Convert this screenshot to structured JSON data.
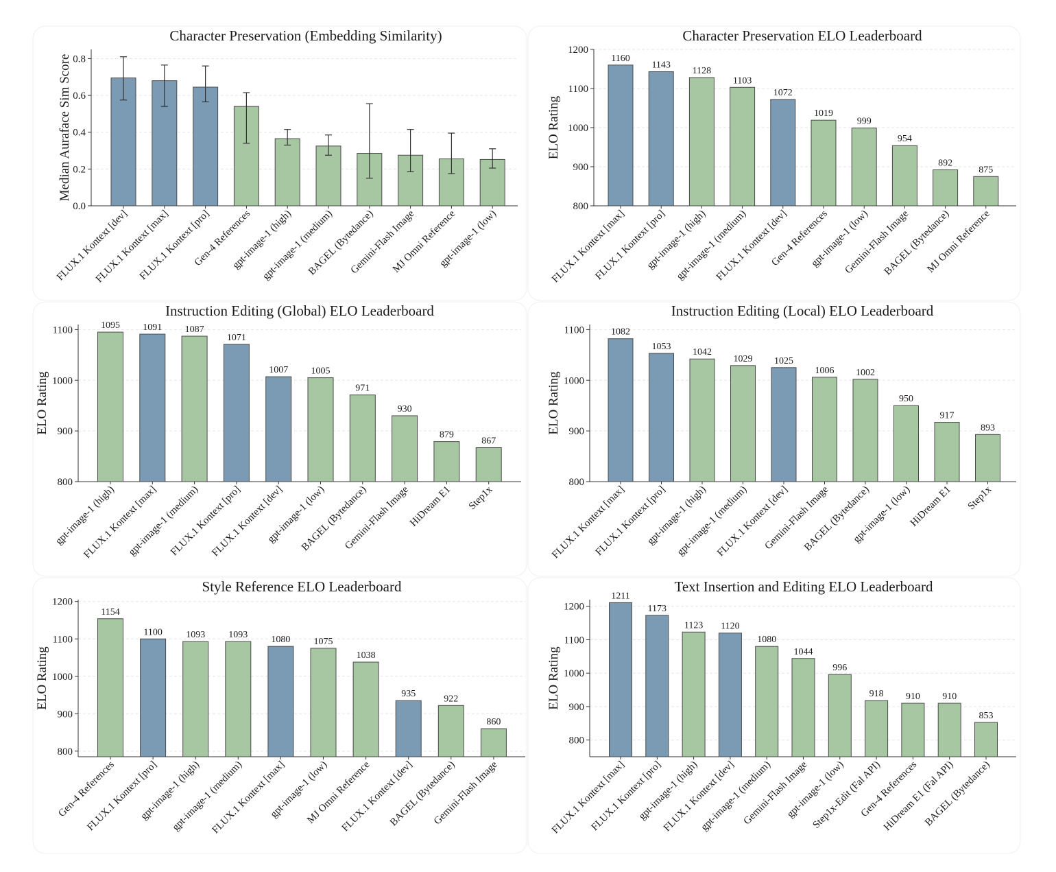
{
  "colors": {
    "flux": "#7b9bb5",
    "other": "#a7c7a2"
  },
  "chart_data": [
    {
      "type": "bar",
      "title": "Character Preservation (Embedding Similarity)",
      "ylabel": "Median Auraface Sim Score",
      "ylim": [
        0,
        0.85
      ],
      "yticks": [
        "0.0",
        "0.2",
        "0.4",
        "0.6",
        "0.8"
      ],
      "ytick_values": [
        0,
        0.2,
        0.4,
        0.6,
        0.8
      ],
      "categories": [
        "FLUX.1 Kontext [dev]",
        "FLUX.1 Kontext [max]",
        "FLUX.1 Kontext [pro]",
        "Gen-4 References",
        "gpt-image-1 (high)",
        "gpt-image-1 (medium)",
        "BAGEL (Bytedance)",
        "Gemini-Flash Image",
        "MJ Omni Reference",
        "gpt-image-1 (low)"
      ],
      "values": [
        0.695,
        0.68,
        0.645,
        0.54,
        0.365,
        0.325,
        0.285,
        0.275,
        0.255,
        0.252
      ],
      "err_low": [
        0.575,
        0.54,
        0.565,
        0.34,
        0.33,
        0.275,
        0.15,
        0.185,
        0.175,
        0.205
      ],
      "err_high": [
        0.81,
        0.765,
        0.76,
        0.615,
        0.415,
        0.385,
        0.555,
        0.415,
        0.395,
        0.31
      ],
      "highlight": [
        true,
        true,
        true,
        false,
        false,
        false,
        false,
        false,
        false,
        false
      ],
      "show_labels": false
    },
    {
      "type": "bar",
      "title": "Character Preservation ELO Leaderboard",
      "ylabel": "ELO Rating",
      "ylim": [
        800,
        1200
      ],
      "yticks": [
        "800",
        "900",
        "1000",
        "1100",
        "1200"
      ],
      "ytick_values": [
        800,
        900,
        1000,
        1100,
        1200
      ],
      "categories": [
        "FLUX.1 Kontext [max]",
        "FLUX.1 Kontext [pro]",
        "gpt-image-1 (high)",
        "gpt-image-1 (medium)",
        "FLUX.1 Kontext [dev]",
        "Gen-4 References",
        "gpt-image-1 (low)",
        "Gemini-Flash Image",
        "BAGEL (Bytedance)",
        "MJ Omni Reference"
      ],
      "values": [
        1160,
        1143,
        1128,
        1103,
        1072,
        1019,
        999,
        954,
        892,
        875
      ],
      "value_labels": [
        "1160",
        "1143",
        "1128",
        "1103",
        "1072",
        "1019",
        "999",
        "954",
        "892",
        "875"
      ],
      "highlight": [
        true,
        true,
        false,
        false,
        true,
        false,
        false,
        false,
        false,
        false
      ],
      "show_labels": true
    },
    {
      "type": "bar",
      "title": "Instruction Editing (Global) ELO Leaderboard",
      "ylabel": "ELO Rating",
      "ylim": [
        800,
        1110
      ],
      "yticks": [
        "800",
        "900",
        "1000",
        "1100"
      ],
      "ytick_values": [
        800,
        900,
        1000,
        1100
      ],
      "categories": [
        "gpt-image-1 (high)",
        "FLUX.1 Kontext [max]",
        "gpt-image-1 (medium)",
        "FLUX.1 Kontext [pro]",
        "FLUX.1 Kontext [dev]",
        "gpt-image-1 (low)",
        "BAGEL (Bytedance)",
        "Gemini-Flash Image",
        "HiDream E1",
        "Step1x"
      ],
      "values": [
        1095,
        1091,
        1087,
        1071,
        1007,
        1005,
        971,
        930,
        879,
        867
      ],
      "value_labels": [
        "1095",
        "1091",
        "1087",
        "1071",
        "1007",
        "1005",
        "971",
        "930",
        "879",
        "867"
      ],
      "highlight": [
        false,
        true,
        false,
        true,
        true,
        false,
        false,
        false,
        false,
        false
      ],
      "show_labels": true
    },
    {
      "type": "bar",
      "title": "Instruction Editing (Local) ELO Leaderboard",
      "ylabel": "ELO Rating",
      "ylim": [
        800,
        1110
      ],
      "yticks": [
        "800",
        "900",
        "1000",
        "1100"
      ],
      "ytick_values": [
        800,
        900,
        1000,
        1100
      ],
      "categories": [
        "FLUX.1 Kontext [max]",
        "FLUX.1 Kontext [pro]",
        "gpt-image-1 (high)",
        "gpt-image-1 (medium)",
        "FLUX.1 Kontext [dev]",
        "Gemini-Flash Image",
        "BAGEL (Bytedance)",
        "gpt-image-1 (low)",
        "HiDream E1",
        "Step1x"
      ],
      "values": [
        1082,
        1053,
        1042,
        1029,
        1025,
        1006,
        1002,
        950,
        917,
        893
      ],
      "value_labels": [
        "1082",
        "1053",
        "1042",
        "1029",
        "1025",
        "1006",
        "1002",
        "950",
        "917",
        "893"
      ],
      "highlight": [
        true,
        true,
        false,
        false,
        true,
        false,
        false,
        false,
        false,
        false
      ],
      "show_labels": true
    },
    {
      "type": "bar",
      "title": "Style Reference ELO Leaderboard",
      "ylabel": "ELO Rating",
      "ylim": [
        785,
        1205
      ],
      "yticks": [
        "800",
        "900",
        "1000",
        "1100",
        "1200"
      ],
      "ytick_values": [
        800,
        900,
        1000,
        1100,
        1200
      ],
      "categories": [
        "Gen-4 References",
        "FLUX.1 Kontext [pro]",
        "gpt-image-1 (high)",
        "gpt-image-1 (medium)",
        "FLUX.1 Kontext [max]",
        "gpt-image-1 (low)",
        "MJ Omni Reference",
        "FLUX.1 Kontext [dev]",
        "BAGEL (Bytedance)",
        "Gemini-Flash Image"
      ],
      "values": [
        1154,
        1100,
        1093,
        1093,
        1080,
        1075,
        1038,
        935,
        922,
        860
      ],
      "value_labels": [
        "1154",
        "1100",
        "1093",
        "1093",
        "1080",
        "1075",
        "1038",
        "935",
        "922",
        "860"
      ],
      "highlight": [
        false,
        true,
        false,
        false,
        true,
        false,
        false,
        true,
        false,
        false
      ],
      "show_labels": true
    },
    {
      "type": "bar",
      "title": "Text Insertion and Editing ELO Leaderboard",
      "ylabel": "ELO Rating",
      "ylim": [
        750,
        1220
      ],
      "yticks": [
        "800",
        "900",
        "1000",
        "1100",
        "1200"
      ],
      "ytick_values": [
        800,
        900,
        1000,
        1100,
        1200
      ],
      "categories": [
        "FLUX.1 Kontext [max]",
        "FLUX.1 Kontext [pro]",
        "gpt-image-1 (high)",
        "FLUX.1 Kontext [dev]",
        "gpt-image-1 (medium)",
        "Gemini-Flash Image",
        "gpt-image-1 (low)",
        "Step1x-Edit (Fal API)",
        "Gen-4 References",
        "HiDream E1 (Fal API)",
        "BAGEL (Bytedance)"
      ],
      "values": [
        1211,
        1173,
        1123,
        1120,
        1080,
        1044,
        996,
        918,
        910,
        910,
        853
      ],
      "value_labels": [
        "1211",
        "1173",
        "1123",
        "1120",
        "1080",
        "1044",
        "996",
        "918",
        "910",
        "910",
        "853"
      ],
      "highlight": [
        true,
        true,
        false,
        true,
        false,
        false,
        false,
        false,
        false,
        false,
        false
      ],
      "show_labels": true
    }
  ]
}
